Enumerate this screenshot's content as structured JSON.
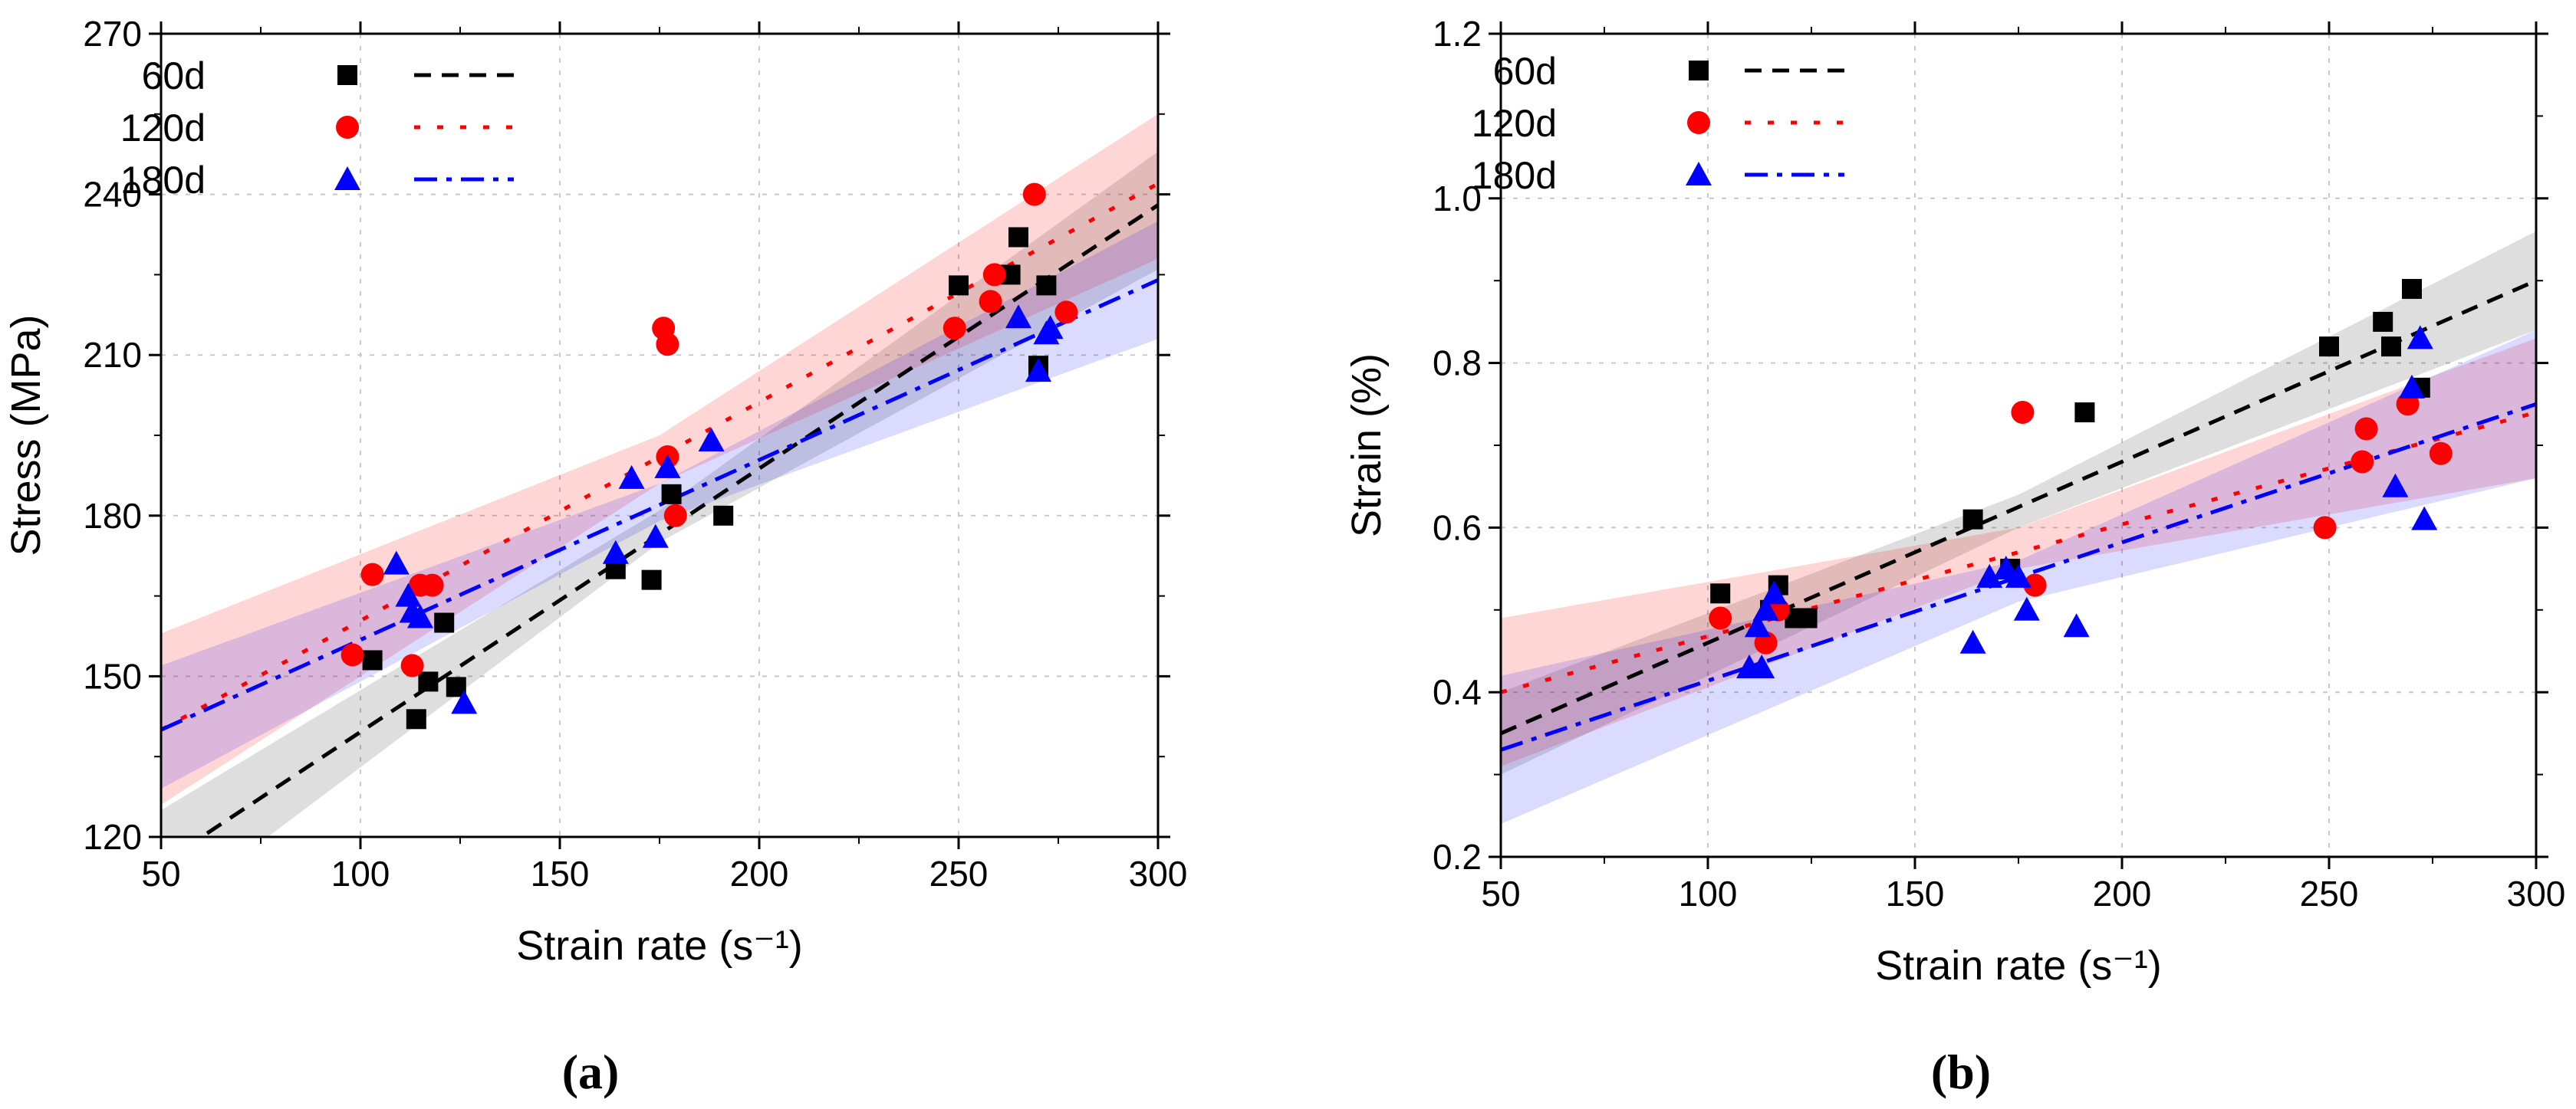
{
  "chart_data": [
    {
      "type": "scatter",
      "panel_label": "(a)",
      "xlabel": "Strain rate (s⁻¹)",
      "ylabel": "Stress (MPa)",
      "xlim": [
        50,
        300
      ],
      "ylim": [
        120,
        270
      ],
      "xticks": [
        50,
        100,
        150,
        200,
        250,
        300
      ],
      "yticks": [
        120,
        150,
        180,
        210,
        240,
        270
      ],
      "grid": true,
      "legend_position": "top-left",
      "series": [
        {
          "name": "60d",
          "color": "#000000",
          "marker": "square",
          "line_style": "dash",
          "points": [
            [
              103,
              153
            ],
            [
              114,
              142
            ],
            [
              117,
              149
            ],
            [
              121,
              160
            ],
            [
              124,
              148
            ],
            [
              164,
              170
            ],
            [
              173,
              168
            ],
            [
              178,
              184
            ],
            [
              191,
              180
            ],
            [
              250,
              223
            ],
            [
              263,
              225
            ],
            [
              265,
              232
            ],
            [
              270,
              208
            ],
            [
              272,
              223
            ]
          ],
          "fit": [
            [
              50,
              115
            ],
            [
              300,
              238
            ]
          ],
          "band": [
            [
              50,
              105,
              125
            ],
            [
              175,
              175,
              181
            ],
            [
              300,
              226,
              248
            ]
          ]
        },
        {
          "name": "120d",
          "color": "#ff0000",
          "marker": "circle",
          "line_style": "dot",
          "points": [
            [
              98,
              154
            ],
            [
              103,
              169
            ],
            [
              113,
              152
            ],
            [
              115,
              167
            ],
            [
              118,
              167
            ],
            [
              176,
              215
            ],
            [
              177,
              212
            ],
            [
              177,
              191
            ],
            [
              179,
              180
            ],
            [
              249,
              215
            ],
            [
              258,
              220
            ],
            [
              259,
              225
            ],
            [
              269,
              240
            ],
            [
              277,
              218
            ]
          ],
          "fit": [
            [
              50,
              140
            ],
            [
              300,
              242
            ]
          ],
          "band": [
            [
              50,
              126,
              158
            ],
            [
              175,
              186,
              195
            ],
            [
              300,
              228,
              255
            ]
          ]
        },
        {
          "name": "180d",
          "color": "#0000ff",
          "marker": "triangle",
          "line_style": "dashdot",
          "points": [
            [
              109,
              171
            ],
            [
              112,
              165
            ],
            [
              113,
              162
            ],
            [
              115,
              161
            ],
            [
              126,
              145
            ],
            [
              164,
              173
            ],
            [
              168,
              187
            ],
            [
              174,
              176
            ],
            [
              177,
              189
            ],
            [
              188,
              194
            ],
            [
              265,
              217
            ],
            [
              270,
              207
            ],
            [
              272,
              214
            ],
            [
              273,
              215
            ]
          ],
          "fit": [
            [
              50,
              140
            ],
            [
              300,
              224
            ]
          ],
          "band": [
            [
              50,
              129,
              152
            ],
            [
              175,
              179,
              186
            ],
            [
              300,
              213,
              235
            ]
          ]
        }
      ]
    },
    {
      "type": "scatter",
      "panel_label": "(b)",
      "xlabel": "Strain rate (s⁻¹)",
      "ylabel": "Strain (%)",
      "xlim": [
        50,
        300
      ],
      "ylim": [
        0.2,
        1.2
      ],
      "xticks": [
        50,
        100,
        150,
        200,
        250,
        300
      ],
      "yticks": [
        0.2,
        0.4,
        0.6,
        0.8,
        1.0,
        1.2
      ],
      "grid": true,
      "legend_position": "top-left",
      "series": [
        {
          "name": "60d",
          "color": "#000000",
          "marker": "square",
          "line_style": "dash",
          "points": [
            [
              103,
              0.52
            ],
            [
              115,
              0.5
            ],
            [
              117,
              0.53
            ],
            [
              121,
              0.49
            ],
            [
              124,
              0.49
            ],
            [
              164,
              0.61
            ],
            [
              173,
              0.55
            ],
            [
              191,
              0.74
            ],
            [
              250,
              0.82
            ],
            [
              263,
              0.85
            ],
            [
              265,
              0.82
            ],
            [
              270,
              0.89
            ],
            [
              272,
              0.77
            ]
          ],
          "fit": [
            [
              50,
              0.35
            ],
            [
              300,
              0.9
            ]
          ],
          "band": [
            [
              50,
              0.3,
              0.4
            ],
            [
              175,
              0.6,
              0.64
            ],
            [
              300,
              0.84,
              0.96
            ]
          ]
        },
        {
          "name": "120d",
          "color": "#ff0000",
          "marker": "circle",
          "line_style": "dot",
          "points": [
            [
              103,
              0.49
            ],
            [
              114,
              0.46
            ],
            [
              117,
              0.5
            ],
            [
              176,
              0.74
            ],
            [
              179,
              0.53
            ],
            [
              249,
              0.6
            ],
            [
              258,
              0.68
            ],
            [
              259,
              0.72
            ],
            [
              269,
              0.75
            ],
            [
              277,
              0.69
            ]
          ],
          "fit": [
            [
              50,
              0.4
            ],
            [
              300,
              0.74
            ]
          ],
          "band": [
            [
              50,
              0.31,
              0.49
            ],
            [
              175,
              0.55,
              0.6
            ],
            [
              300,
              0.66,
              0.83
            ]
          ]
        },
        {
          "name": "180d",
          "color": "#0000ff",
          "marker": "triangle",
          "line_style": "dashdot",
          "points": [
            [
              110,
              0.43
            ],
            [
              112,
              0.48
            ],
            [
              113,
              0.43
            ],
            [
              114,
              0.5
            ],
            [
              116,
              0.52
            ],
            [
              164,
              0.46
            ],
            [
              168,
              0.54
            ],
            [
              172,
              0.55
            ],
            [
              175,
              0.54
            ],
            [
              177,
              0.5
            ],
            [
              189,
              0.48
            ],
            [
              266,
              0.65
            ],
            [
              270,
              0.77
            ],
            [
              272,
              0.83
            ],
            [
              273,
              0.61
            ]
          ],
          "fit": [
            [
              50,
              0.33
            ],
            [
              300,
              0.75
            ]
          ],
          "band": [
            [
              50,
              0.24,
              0.42
            ],
            [
              175,
              0.51,
              0.56
            ],
            [
              300,
              0.66,
              0.84
            ]
          ]
        }
      ]
    }
  ]
}
